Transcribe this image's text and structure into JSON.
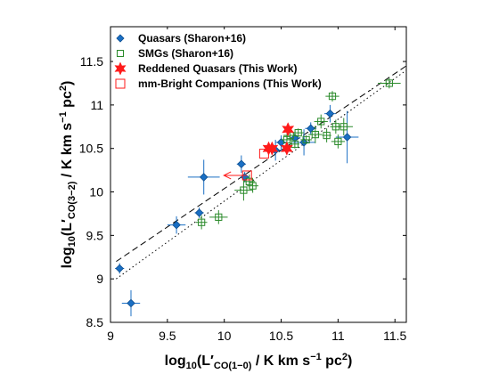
{
  "chart_data": {
    "type": "scatter",
    "xlim": [
      9,
      11.6
    ],
    "ylim": [
      8.5,
      11.9
    ],
    "x_ticks": [
      "9",
      "9.5",
      "10",
      "10.5",
      "11",
      "11.5"
    ],
    "y_ticks": [
      "8.5",
      "9",
      "9.5",
      "10",
      "10.5",
      "11",
      "11.5"
    ],
    "x_tick_values": [
      9,
      9.5,
      10,
      10.5,
      11,
      11.5
    ],
    "y_tick_values": [
      8.5,
      9,
      9.5,
      10,
      10.5,
      11,
      11.5
    ],
    "xlabel": {
      "base": "log",
      "sub": "10",
      "mid": "(L",
      "prime": "′",
      "sub2": "CO(1−0)",
      "rest": " / K km s",
      "sup": "−1",
      "end": " pc",
      "sup2": "2",
      "close": ")"
    },
    "ylabel": {
      "base": "log",
      "sub": "10",
      "mid": "(L",
      "prime": "′",
      "sub2": "CO(3−2)",
      "rest": " / K km s",
      "sup": "−1",
      "end": " pc",
      "sup2": "2",
      "close": ")"
    },
    "legend": {
      "position": "top-left",
      "entries": [
        {
          "label": "Quasars (Sharon+16)",
          "marker": "diamond",
          "color": "#1a6fc4"
        },
        {
          "label": "SMGs (Sharon+16)",
          "marker": "open-square",
          "color": "#2a8a2a"
        },
        {
          "label": "Reddened Quasars (This Work)",
          "marker": "star",
          "color": "#ff1a1a"
        },
        {
          "label": "mm-Bright Companions (This Work)",
          "marker": "open-square",
          "color": "#ff1a1a"
        }
      ]
    },
    "lines": [
      {
        "style": "dashed",
        "color": "#000000",
        "x": [
          9.05,
          11.6
        ],
        "y": [
          9.2,
          11.45
        ]
      },
      {
        "style": "dotted",
        "color": "#000000",
        "x": [
          9.05,
          11.6
        ],
        "y": [
          9.0,
          11.4
        ]
      }
    ],
    "series": [
      {
        "name": "Quasars (Sharon+16)",
        "marker": "diamond",
        "color": "#1a6fc4",
        "points": [
          {
            "x": 9.08,
            "y": 9.12,
            "xerr": 0.04,
            "yerr": 0.06
          },
          {
            "x": 9.18,
            "y": 8.72,
            "xerr": 0.08,
            "yerr": 0.15
          },
          {
            "x": 9.58,
            "y": 9.62,
            "xerr": 0.08,
            "yerr": 0.1
          },
          {
            "x": 9.78,
            "y": 9.76,
            "xerr": 0.04,
            "yerr": 0.06
          },
          {
            "x": 9.82,
            "y": 10.17,
            "xerr": 0.14,
            "yerr": 0.2
          },
          {
            "x": 10.15,
            "y": 10.32,
            "xerr": 0.04,
            "yerr": 0.1
          },
          {
            "x": 10.18,
            "y": 10.17,
            "xerr": 0.04,
            "yerr": 0.06
          },
          {
            "x": 10.5,
            "y": 10.57,
            "xerr": 0.05,
            "yerr": 0.08
          },
          {
            "x": 10.62,
            "y": 10.62,
            "xerr": 0.05,
            "yerr": 0.07
          },
          {
            "x": 10.7,
            "y": 10.57,
            "xerr": 0.1,
            "yerr": 0.15
          },
          {
            "x": 10.76,
            "y": 10.73,
            "xerr": 0.05,
            "yerr": 0.07
          },
          {
            "x": 10.93,
            "y": 10.9,
            "xerr": 0.05,
            "yerr": 0.1
          },
          {
            "x": 11.08,
            "y": 10.63,
            "xerr": 0.1,
            "yerr": 0.3
          },
          {
            "x": 10.45,
            "y": 10.48,
            "xerr": 0.1,
            "yerr": 0.12
          }
        ]
      },
      {
        "name": "SMGs (Sharon+16)",
        "marker": "open-square",
        "color": "#2a8a2a",
        "points": [
          {
            "x": 9.8,
            "y": 9.65,
            "xerr": 0.05,
            "yerr": 0.08
          },
          {
            "x": 9.95,
            "y": 9.71,
            "xerr": 0.08,
            "yerr": 0.08
          },
          {
            "x": 10.17,
            "y": 10.02,
            "xerr": 0.08,
            "yerr": 0.12
          },
          {
            "x": 10.25,
            "y": 10.07,
            "xerr": 0.05,
            "yerr": 0.08
          },
          {
            "x": 10.22,
            "y": 10.12,
            "xerr": 0.05,
            "yerr": 0.08
          },
          {
            "x": 10.55,
            "y": 10.6,
            "xerr": 0.05,
            "yerr": 0.05
          },
          {
            "x": 10.58,
            "y": 10.65,
            "xerr": 0.06,
            "yerr": 0.06
          },
          {
            "x": 10.62,
            "y": 10.55,
            "xerr": 0.04,
            "yerr": 0.05
          },
          {
            "x": 10.65,
            "y": 10.68,
            "xerr": 0.05,
            "yerr": 0.05
          },
          {
            "x": 10.72,
            "y": 10.6,
            "xerr": 0.05,
            "yerr": 0.05
          },
          {
            "x": 10.8,
            "y": 10.66,
            "xerr": 0.06,
            "yerr": 0.1
          },
          {
            "x": 10.85,
            "y": 10.81,
            "xerr": 0.06,
            "yerr": 0.08
          },
          {
            "x": 10.9,
            "y": 10.65,
            "xerr": 0.04,
            "yerr": 0.08
          },
          {
            "x": 10.95,
            "y": 11.1,
            "xerr": 0.06,
            "yerr": 0.06
          },
          {
            "x": 10.98,
            "y": 10.75,
            "xerr": 0.05,
            "yerr": 0.08
          },
          {
            "x": 11.0,
            "y": 10.58,
            "xerr": 0.06,
            "yerr": 0.08
          },
          {
            "x": 11.05,
            "y": 10.75,
            "xerr": 0.08,
            "yerr": 0.1
          },
          {
            "x": 11.45,
            "y": 11.25,
            "xerr": 0.1,
            "yerr": 0.06
          }
        ]
      },
      {
        "name": "Reddened Quasars (This Work)",
        "marker": "star",
        "color": "#ff1a1a",
        "points": [
          {
            "x": 10.39,
            "y": 10.5
          },
          {
            "x": 10.42,
            "y": 10.5
          },
          {
            "x": 10.55,
            "y": 10.5
          },
          {
            "x": 10.56,
            "y": 10.72
          }
        ]
      },
      {
        "name": "mm-Bright Companions (This Work)",
        "marker": "open-square",
        "color": "#ff1a1a",
        "points": [
          {
            "x": 10.2,
            "y": 10.19,
            "upper_limit_x": true
          },
          {
            "x": 10.35,
            "y": 10.44
          }
        ]
      }
    ]
  }
}
